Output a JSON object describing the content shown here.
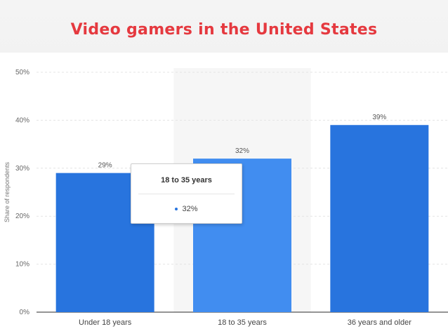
{
  "slide": {
    "title": "Video gamers in the United States"
  },
  "chart_data": {
    "type": "bar",
    "title": "Video gamers in the United States",
    "categories": [
      "Under 18 years",
      "18 to 35 years",
      "36 years and older"
    ],
    "values": [
      29,
      32,
      39
    ],
    "value_labels": [
      "29%",
      "32%",
      "39%"
    ],
    "ylabel": "Share of respondents",
    "xlabel": "",
    "ylim": [
      0,
      50
    ],
    "yticks": [
      0,
      10,
      20,
      30,
      40,
      50
    ],
    "ytick_labels": [
      "0%",
      "10%",
      "20%",
      "30%",
      "40%",
      "50%"
    ],
    "grid": true,
    "highlighted_category": "18 to 35 years",
    "colors": {
      "bar": "#2874de",
      "bar_highlight": "#418df0",
      "hover_band": "#f6f6f6",
      "title": "#e5393f"
    }
  },
  "tooltip": {
    "title": "18 to 35 years",
    "value": "32%"
  }
}
